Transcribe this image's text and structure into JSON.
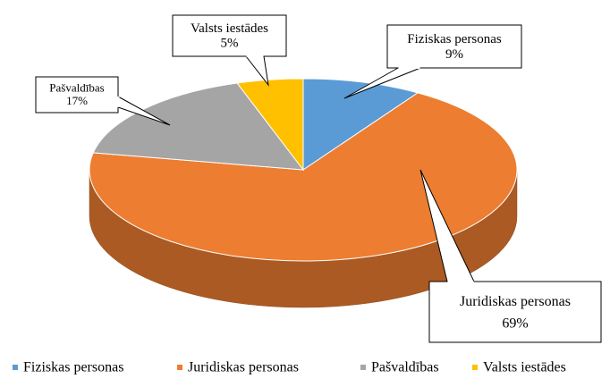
{
  "chart_data": {
    "type": "pie3d",
    "categories": [
      "Fiziskas personas",
      "Juridiskas personas",
      "Pašvaldības",
      "Valsts iestādes"
    ],
    "values": [
      9,
      69,
      17,
      5
    ],
    "value_labels": [
      "9%",
      "69%",
      "17%",
      "5%"
    ],
    "colors": [
      "#5b9bd5",
      "#ed7d31",
      "#a5a5a5",
      "#ffc000"
    ],
    "legend": "bottom"
  }
}
